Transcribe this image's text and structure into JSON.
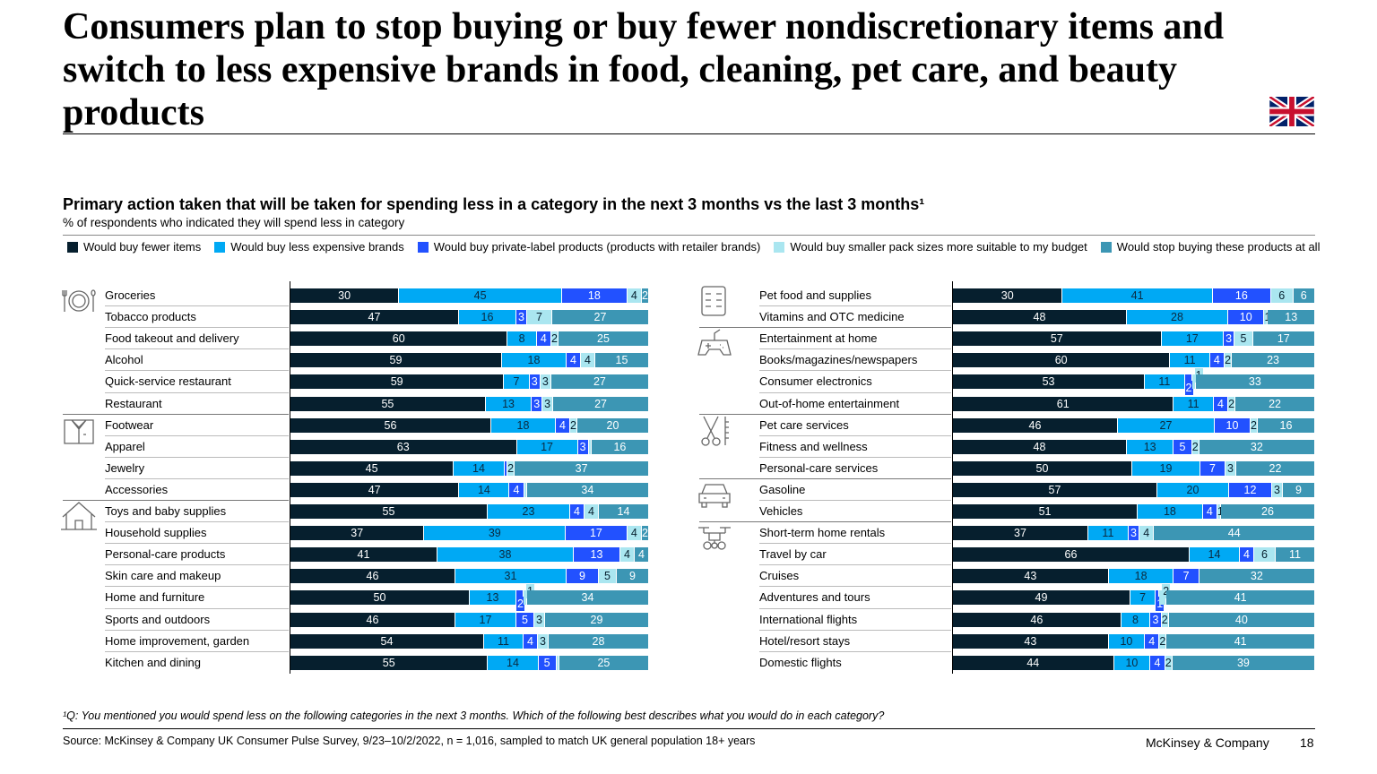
{
  "title": "Consumers plan to stop buying or buy fewer nondiscretionary items and switch to less expensive brands in food, cleaning, pet care, and beauty products",
  "footnote": "¹Q: You mentioned you would spend less on the following categories in the next 3 months. Which of the following best describes what you would do in each category?",
  "source": "Source: McKinsey & Company UK Consumer Pulse Survey, 9/23–10/2/2022, n = 1,016, sampled to match UK general population 18+ years",
  "brand": "McKinsey & Company",
  "page_number": "18",
  "flag_icon": "uk-flag-icon",
  "chart_data": {
    "type": "stacked-bar-horizontal",
    "title": "Primary action taken that will be taken for spending less in a category in the next 3 months vs the last 3 months¹",
    "subtitle": "% of respondents who indicated they will spend less in category",
    "legend_position": "top",
    "series": [
      {
        "name": "Would buy fewer items",
        "color": "#061f2e"
      },
      {
        "name": "Would buy less expensive brands",
        "color": "#00a9f4"
      },
      {
        "name": "Would buy private-label products (products with retailer brands)",
        "color": "#2251ff"
      },
      {
        "name": "Would buy smaller pack sizes more suitable to my budget",
        "color": "#aae6f0"
      },
      {
        "name": "Would stop buying these products at all",
        "color": "#3c96b4"
      }
    ],
    "panels": [
      {
        "groups": [
          {
            "icon": "dining-plate-icon",
            "rows": [
              {
                "category": "Groceries",
                "values": [
                  30,
                  45,
                  18,
                  4,
                  2
                ]
              },
              {
                "category": "Tobacco products",
                "values": [
                  47,
                  16,
                  3,
                  7,
                  27
                ]
              },
              {
                "category": "Food takeout and delivery",
                "values": [
                  60,
                  8,
                  4,
                  2,
                  25
                ]
              },
              {
                "category": "Alcohol",
                "values": [
                  59,
                  18,
                  4,
                  4,
                  15
                ]
              },
              {
                "category": "Quick-service restaurant",
                "values": [
                  59,
                  7,
                  3,
                  3,
                  27
                ]
              },
              {
                "category": "Restaurant",
                "values": [
                  55,
                  13,
                  3,
                  3,
                  27
                ]
              }
            ]
          },
          {
            "icon": "shirt-icon",
            "rows": [
              {
                "category": "Footwear",
                "values": [
                  56,
                  18,
                  4,
                  2,
                  20
                ]
              },
              {
                "category": "Apparel",
                "values": [
                  63,
                  17,
                  3,
                  null,
                  16
                ]
              },
              {
                "category": "Jewelry",
                "values": [
                  45,
                  14,
                  null,
                  2,
                  37
                ]
              },
              {
                "category": "Accessories",
                "values": [
                  47,
                  14,
                  4,
                  null,
                  34
                ]
              }
            ]
          },
          {
            "icon": "house-icon",
            "rows": [
              {
                "category": "Toys and baby supplies",
                "values": [
                  55,
                  23,
                  4,
                  4,
                  14
                ]
              },
              {
                "category": "Household supplies",
                "values": [
                  37,
                  39,
                  17,
                  4,
                  2
                ]
              },
              {
                "category": "Personal-care products",
                "values": [
                  41,
                  38,
                  13,
                  4,
                  4
                ]
              },
              {
                "category": "Skin care and makeup",
                "values": [
                  46,
                  31,
                  9,
                  5,
                  9
                ]
              },
              {
                "category": "Home and furniture",
                "values": [
                  50,
                  13,
                  2,
                  1,
                  34
                ]
              },
              {
                "category": "Sports and outdoors",
                "values": [
                  46,
                  17,
                  5,
                  3,
                  29
                ]
              },
              {
                "category": "Home improvement, garden",
                "values": [
                  54,
                  11,
                  4,
                  3,
                  28
                ]
              },
              {
                "category": "Kitchen and dining",
                "values": [
                  55,
                  14,
                  5,
                  null,
                  25
                ]
              }
            ]
          }
        ]
      },
      {
        "groups": [
          {
            "icon": "pills-icon",
            "rows": [
              {
                "category": "Pet food and supplies",
                "values": [
                  30,
                  41,
                  16,
                  6,
                  6
                ]
              },
              {
                "category": "Vitamins and OTC medicine",
                "values": [
                  48,
                  28,
                  10,
                  1,
                  13
                ]
              }
            ]
          },
          {
            "icon": "gamepad-icon",
            "rows": [
              {
                "category": "Entertainment at home",
                "values": [
                  57,
                  17,
                  3,
                  5,
                  17
                ]
              },
              {
                "category": "Books/magazines/newspapers",
                "values": [
                  60,
                  11,
                  4,
                  2,
                  23
                ]
              },
              {
                "category": "Consumer electronics",
                "values": [
                  53,
                  11,
                  2,
                  1,
                  33
                ]
              },
              {
                "category": "Out-of-home entertainment",
                "values": [
                  61,
                  11,
                  4,
                  2,
                  22
                ]
              }
            ]
          },
          {
            "icon": "scissors-icon",
            "rows": [
              {
                "category": "Pet care services",
                "values": [
                  46,
                  27,
                  10,
                  2,
                  16
                ]
              },
              {
                "category": "Fitness and wellness",
                "values": [
                  48,
                  13,
                  5,
                  2,
                  32
                ]
              },
              {
                "category": "Personal-care services",
                "values": [
                  50,
                  19,
                  7,
                  3,
                  22
                ]
              }
            ]
          },
          {
            "icon": "car-icon",
            "rows": [
              {
                "category": "Gasoline",
                "values": [
                  57,
                  20,
                  12,
                  3,
                  9
                ]
              },
              {
                "category": "Vehicles",
                "values": [
                  51,
                  18,
                  4,
                  1,
                  26
                ]
              }
            ]
          },
          {
            "icon": "drone-icon",
            "rows": [
              {
                "category": "Short-term home rentals",
                "values": [
                  37,
                  11,
                  3,
                  4,
                  44
                ]
              },
              {
                "category": "Travel by car",
                "values": [
                  66,
                  14,
                  4,
                  6,
                  11
                ]
              },
              {
                "category": "Cruises",
                "values": [
                  43,
                  18,
                  7,
                  0,
                  32
                ]
              },
              {
                "category": "Adventures and tours",
                "values": [
                  49,
                  7,
                  1,
                  2,
                  41
                ]
              },
              {
                "category": "International flights",
                "values": [
                  46,
                  8,
                  3,
                  2,
                  40
                ]
              },
              {
                "category": "Hotel/resort stays",
                "values": [
                  43,
                  10,
                  4,
                  2,
                  41
                ]
              },
              {
                "category": "Domestic flights",
                "values": [
                  44,
                  10,
                  4,
                  2,
                  39
                ]
              }
            ]
          }
        ]
      }
    ]
  }
}
